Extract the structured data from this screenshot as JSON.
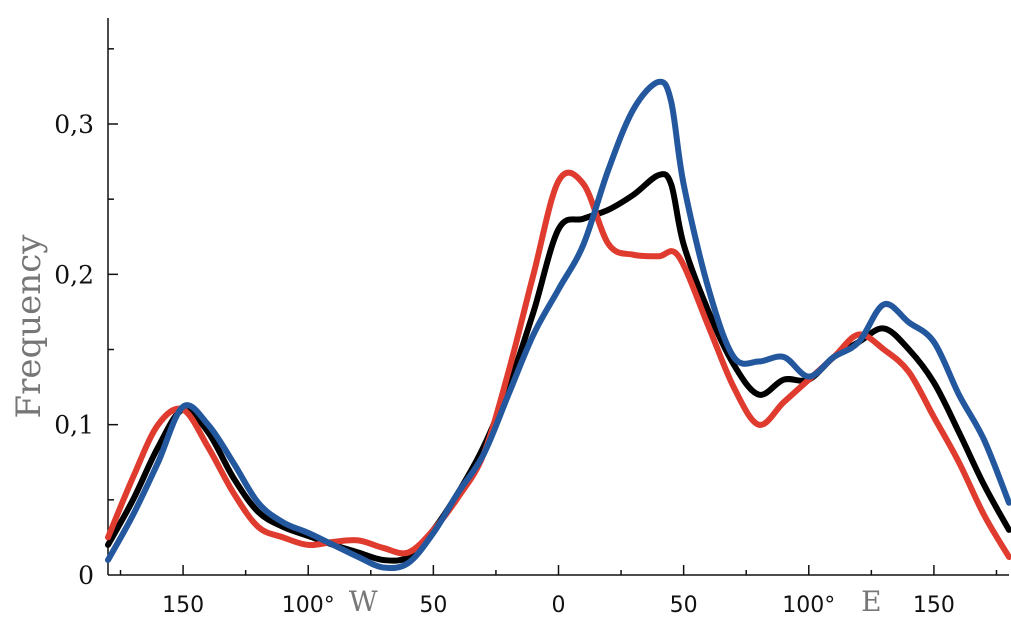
{
  "chart_data": {
    "type": "line",
    "title": "",
    "ylabel": "Frequency",
    "xlabel": "",
    "x_axis_note": "longitude in degrees, running from 180 W through 0 to 180 E",
    "xlim": [
      -180,
      180
    ],
    "ylim": [
      0,
      0.36
    ],
    "x_ticks": [
      {
        "value": -150,
        "label": "150"
      },
      {
        "value": -100,
        "label": "100°"
      },
      {
        "value": -50,
        "label": "50"
      },
      {
        "value": 0,
        "label": "0"
      },
      {
        "value": 50,
        "label": "50"
      },
      {
        "value": 100,
        "label": "100°"
      },
      {
        "value": 150,
        "label": "150"
      }
    ],
    "x_direction_labels": [
      {
        "value": -78,
        "label": "W"
      },
      {
        "value": 125,
        "label": "E"
      }
    ],
    "y_ticks": [
      {
        "value": 0,
        "label": "0"
      },
      {
        "value": 0.1,
        "label": "0,1"
      },
      {
        "value": 0.2,
        "label": "0,2"
      },
      {
        "value": 0.3,
        "label": "0,3"
      }
    ],
    "grid": false,
    "legend": "none",
    "series": [
      {
        "color": "#000000",
        "points": [
          [
            -180,
            0.02
          ],
          [
            -170,
            0.05
          ],
          [
            -160,
            0.085
          ],
          [
            -150,
            0.11
          ],
          [
            -140,
            0.095
          ],
          [
            -130,
            0.065
          ],
          [
            -120,
            0.042
          ],
          [
            -110,
            0.032
          ],
          [
            -100,
            0.026
          ],
          [
            -90,
            0.02
          ],
          [
            -80,
            0.015
          ],
          [
            -70,
            0.01
          ],
          [
            -60,
            0.012
          ],
          [
            -50,
            0.03
          ],
          [
            -40,
            0.055
          ],
          [
            -30,
            0.085
          ],
          [
            -20,
            0.125
          ],
          [
            -10,
            0.175
          ],
          [
            0,
            0.23
          ],
          [
            10,
            0.237
          ],
          [
            20,
            0.243
          ],
          [
            30,
            0.253
          ],
          [
            40,
            0.266
          ],
          [
            45,
            0.26
          ],
          [
            50,
            0.22
          ],
          [
            60,
            0.175
          ],
          [
            70,
            0.14
          ],
          [
            80,
            0.12
          ],
          [
            90,
            0.13
          ],
          [
            100,
            0.13
          ],
          [
            110,
            0.145
          ],
          [
            120,
            0.155
          ],
          [
            130,
            0.164
          ],
          [
            140,
            0.15
          ],
          [
            150,
            0.128
          ],
          [
            160,
            0.095
          ],
          [
            170,
            0.06
          ],
          [
            180,
            0.03
          ]
        ]
      },
      {
        "color": "#e03b2f",
        "points": [
          [
            -180,
            0.025
          ],
          [
            -170,
            0.065
          ],
          [
            -160,
            0.1
          ],
          [
            -150,
            0.11
          ],
          [
            -140,
            0.085
          ],
          [
            -130,
            0.055
          ],
          [
            -120,
            0.032
          ],
          [
            -110,
            0.025
          ],
          [
            -100,
            0.02
          ],
          [
            -90,
            0.022
          ],
          [
            -80,
            0.023
          ],
          [
            -70,
            0.018
          ],
          [
            -60,
            0.015
          ],
          [
            -50,
            0.03
          ],
          [
            -40,
            0.052
          ],
          [
            -30,
            0.08
          ],
          [
            -20,
            0.135
          ],
          [
            -10,
            0.2
          ],
          [
            0,
            0.262
          ],
          [
            10,
            0.26
          ],
          [
            20,
            0.22
          ],
          [
            30,
            0.213
          ],
          [
            40,
            0.212
          ],
          [
            48,
            0.212
          ],
          [
            60,
            0.165
          ],
          [
            70,
            0.125
          ],
          [
            80,
            0.1
          ],
          [
            90,
            0.115
          ],
          [
            100,
            0.13
          ],
          [
            110,
            0.145
          ],
          [
            120,
            0.16
          ],
          [
            130,
            0.15
          ],
          [
            140,
            0.135
          ],
          [
            150,
            0.105
          ],
          [
            160,
            0.075
          ],
          [
            170,
            0.04
          ],
          [
            180,
            0.012
          ]
        ]
      },
      {
        "color": "#24589e",
        "points": [
          [
            -180,
            0.01
          ],
          [
            -170,
            0.04
          ],
          [
            -160,
            0.075
          ],
          [
            -150,
            0.112
          ],
          [
            -140,
            0.1
          ],
          [
            -130,
            0.075
          ],
          [
            -120,
            0.048
          ],
          [
            -110,
            0.035
          ],
          [
            -100,
            0.028
          ],
          [
            -90,
            0.02
          ],
          [
            -80,
            0.012
          ],
          [
            -70,
            0.005
          ],
          [
            -60,
            0.008
          ],
          [
            -50,
            0.028
          ],
          [
            -40,
            0.055
          ],
          [
            -30,
            0.08
          ],
          [
            -20,
            0.12
          ],
          [
            -10,
            0.16
          ],
          [
            0,
            0.19
          ],
          [
            10,
            0.22
          ],
          [
            20,
            0.27
          ],
          [
            30,
            0.31
          ],
          [
            40,
            0.328
          ],
          [
            45,
            0.315
          ],
          [
            50,
            0.26
          ],
          [
            60,
            0.19
          ],
          [
            70,
            0.145
          ],
          [
            80,
            0.142
          ],
          [
            90,
            0.145
          ],
          [
            100,
            0.132
          ],
          [
            110,
            0.145
          ],
          [
            120,
            0.155
          ],
          [
            130,
            0.18
          ],
          [
            140,
            0.168
          ],
          [
            150,
            0.155
          ],
          [
            160,
            0.12
          ],
          [
            170,
            0.09
          ],
          [
            180,
            0.048
          ]
        ]
      }
    ]
  }
}
